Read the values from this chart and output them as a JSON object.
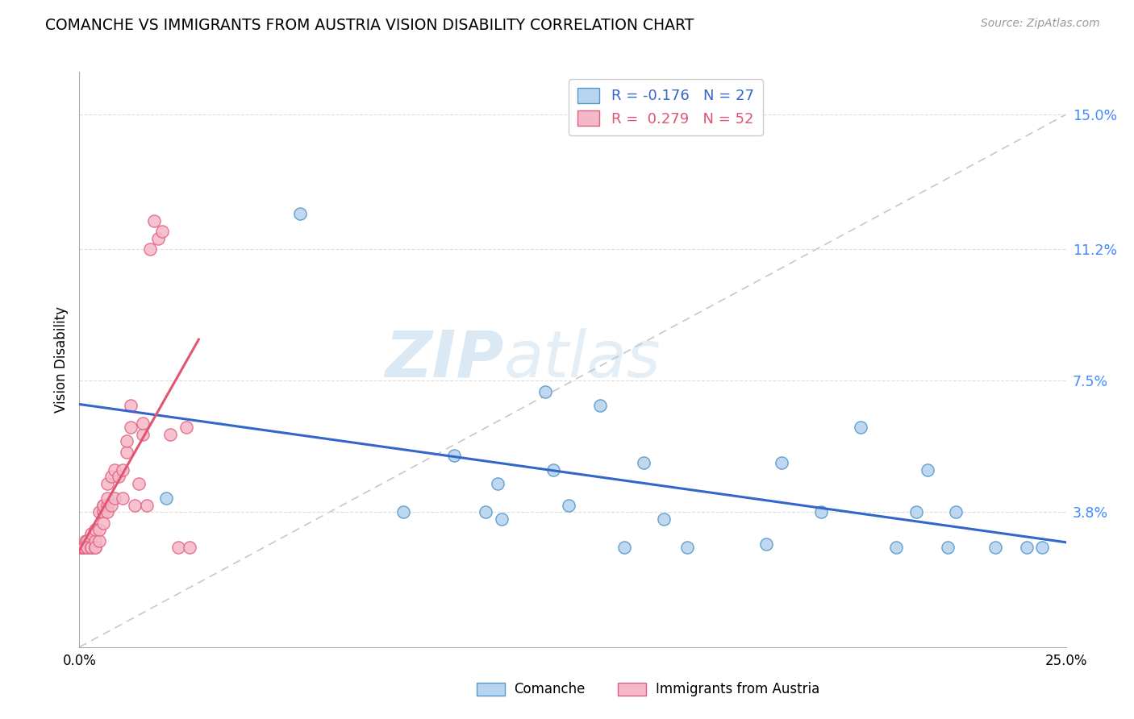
{
  "title": "COMANCHE VS IMMIGRANTS FROM AUSTRIA VISION DISABILITY CORRELATION CHART",
  "source": "Source: ZipAtlas.com",
  "ylabel": "Vision Disability",
  "xlim": [
    0.0,
    0.25
  ],
  "ylim": [
    0.0,
    0.162
  ],
  "ytick_vals": [
    0.038,
    0.075,
    0.112,
    0.15
  ],
  "ytick_labels": [
    "3.8%",
    "7.5%",
    "11.2%",
    "15.0%"
  ],
  "legend_r1": "R = -0.176",
  "legend_n1": "N = 27",
  "legend_r2": "R =  0.279",
  "legend_n2": "N = 52",
  "comanche_color": "#b8d4ee",
  "comanche_edge": "#5599cc",
  "austria_color": "#f5b8c8",
  "austria_edge": "#e06080",
  "trend_blue": "#3366cc",
  "trend_pink": "#e05570",
  "ref_line_color": "#c8c8c8",
  "watermark_zip": "ZIP",
  "watermark_atlas": "atlas",
  "grid_color": "#dddddd",
  "comanche_x": [
    0.022,
    0.056,
    0.082,
    0.095,
    0.103,
    0.106,
    0.107,
    0.118,
    0.12,
    0.124,
    0.132,
    0.138,
    0.143,
    0.148,
    0.154,
    0.174,
    0.178,
    0.188,
    0.198,
    0.207,
    0.212,
    0.215,
    0.22,
    0.222,
    0.232,
    0.24,
    0.244
  ],
  "comanche_y": [
    0.042,
    0.122,
    0.038,
    0.054,
    0.038,
    0.046,
    0.036,
    0.072,
    0.05,
    0.04,
    0.068,
    0.028,
    0.052,
    0.036,
    0.028,
    0.029,
    0.052,
    0.038,
    0.062,
    0.028,
    0.038,
    0.05,
    0.028,
    0.038,
    0.028,
    0.028,
    0.028
  ],
  "austria_x": [
    0.0,
    0.0005,
    0.0008,
    0.001,
    0.0012,
    0.0015,
    0.002,
    0.002,
    0.002,
    0.003,
    0.003,
    0.003,
    0.003,
    0.004,
    0.004,
    0.004,
    0.004,
    0.005,
    0.005,
    0.005,
    0.006,
    0.006,
    0.006,
    0.006,
    0.007,
    0.007,
    0.007,
    0.007,
    0.008,
    0.008,
    0.009,
    0.009,
    0.01,
    0.011,
    0.011,
    0.012,
    0.012,
    0.013,
    0.013,
    0.014,
    0.015,
    0.016,
    0.016,
    0.017,
    0.018,
    0.019,
    0.02,
    0.021,
    0.023,
    0.025,
    0.027,
    0.028
  ],
  "austria_y": [
    0.028,
    0.028,
    0.028,
    0.028,
    0.028,
    0.03,
    0.028,
    0.03,
    0.028,
    0.028,
    0.028,
    0.028,
    0.032,
    0.028,
    0.03,
    0.033,
    0.028,
    0.03,
    0.033,
    0.038,
    0.04,
    0.038,
    0.04,
    0.035,
    0.04,
    0.042,
    0.038,
    0.046,
    0.04,
    0.048,
    0.042,
    0.05,
    0.048,
    0.042,
    0.05,
    0.055,
    0.058,
    0.062,
    0.068,
    0.04,
    0.046,
    0.06,
    0.063,
    0.04,
    0.112,
    0.12,
    0.115,
    0.117,
    0.06,
    0.028,
    0.062,
    0.028
  ]
}
